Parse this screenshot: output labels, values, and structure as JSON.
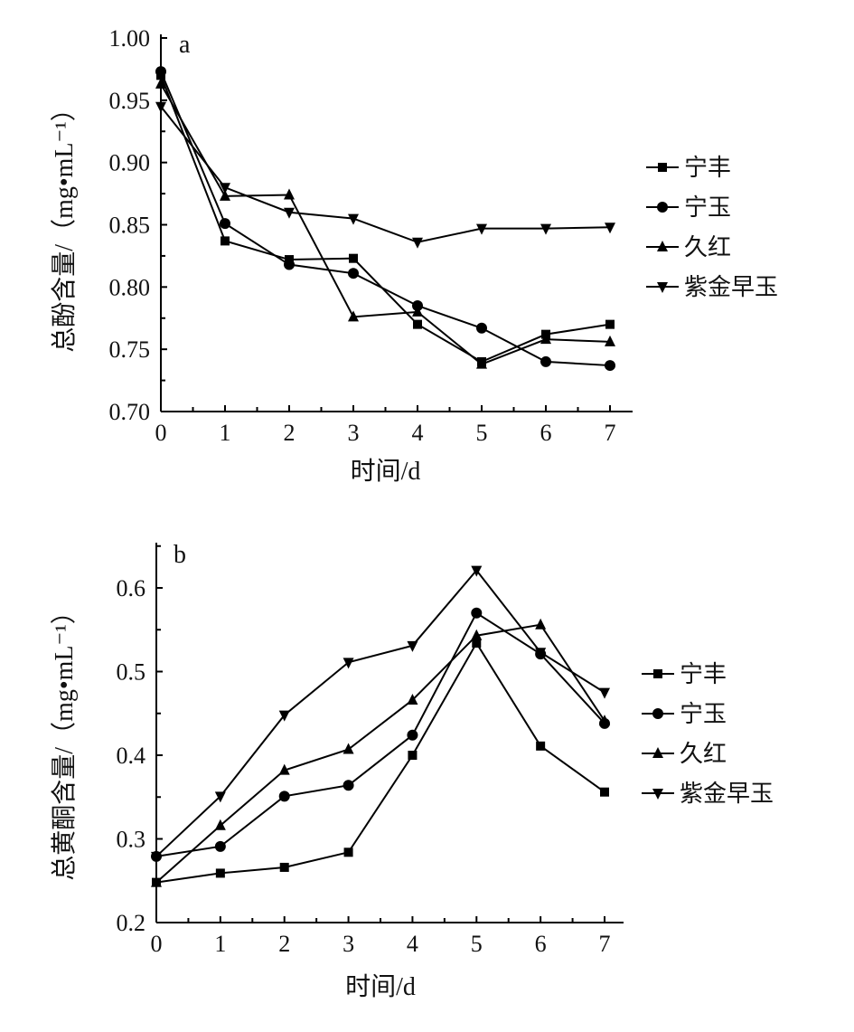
{
  "chart_data": [
    {
      "type": "line",
      "panel_label": "a",
      "xlabel": "时间/d",
      "ylabel": "总酚含量/（mg•mL⁻¹）",
      "x": [
        0,
        1,
        2,
        3,
        4,
        5,
        6,
        7
      ],
      "xlim": [
        0,
        7
      ],
      "ylim": [
        0.7,
        1.0
      ],
      "yticks": [
        "0.70",
        "0.75",
        "0.80",
        "0.85",
        "0.90",
        "0.95",
        "1.00"
      ],
      "xticks": [
        "0",
        "1",
        "2",
        "3",
        "4",
        "5",
        "6",
        "7"
      ],
      "legend_position": "right",
      "series": [
        {
          "name": "宁丰",
          "marker": "square",
          "values": [
            0.97,
            0.837,
            0.822,
            0.823,
            0.77,
            0.74,
            0.762,
            0.77
          ]
        },
        {
          "name": "宁玉",
          "marker": "circle",
          "values": [
            0.973,
            0.851,
            0.818,
            0.811,
            0.785,
            0.767,
            0.74,
            0.737
          ]
        },
        {
          "name": "久红",
          "marker": "triangle-up",
          "values": [
            0.963,
            0.873,
            0.874,
            0.776,
            0.78,
            0.738,
            0.758,
            0.756
          ]
        },
        {
          "name": "紫金早玉",
          "marker": "triangle-down",
          "values": [
            0.945,
            0.88,
            0.86,
            0.855,
            0.836,
            0.847,
            0.847,
            0.848
          ]
        }
      ]
    },
    {
      "type": "line",
      "panel_label": "b",
      "xlabel": "时间/d",
      "ylabel": "总黄酮含量/（mg•mL⁻¹）",
      "x": [
        0,
        1,
        2,
        3,
        4,
        5,
        6,
        7
      ],
      "xlim": [
        0,
        7
      ],
      "ylim": [
        0.2,
        0.65
      ],
      "yticks": [
        "0.2",
        "0.3",
        "0.4",
        "0.5",
        "0.6"
      ],
      "xticks": [
        "0",
        "1",
        "2",
        "3",
        "4",
        "5",
        "6",
        "7"
      ],
      "legend_position": "right",
      "series": [
        {
          "name": "宁丰",
          "marker": "square",
          "values": [
            0.248,
            0.259,
            0.266,
            0.284,
            0.4,
            0.534,
            0.411,
            0.356
          ]
        },
        {
          "name": "宁玉",
          "marker": "circle",
          "values": [
            0.279,
            0.291,
            0.351,
            0.364,
            0.424,
            0.57,
            0.521,
            0.438
          ]
        },
        {
          "name": "久红",
          "marker": "triangle-up",
          "values": [
            0.248,
            0.316,
            0.382,
            0.407,
            0.466,
            0.543,
            0.556,
            0.441
          ]
        },
        {
          "name": "紫金早玉",
          "marker": "triangle-down",
          "values": [
            0.279,
            0.351,
            0.448,
            0.511,
            0.531,
            0.621,
            0.523,
            0.475
          ]
        }
      ]
    }
  ]
}
